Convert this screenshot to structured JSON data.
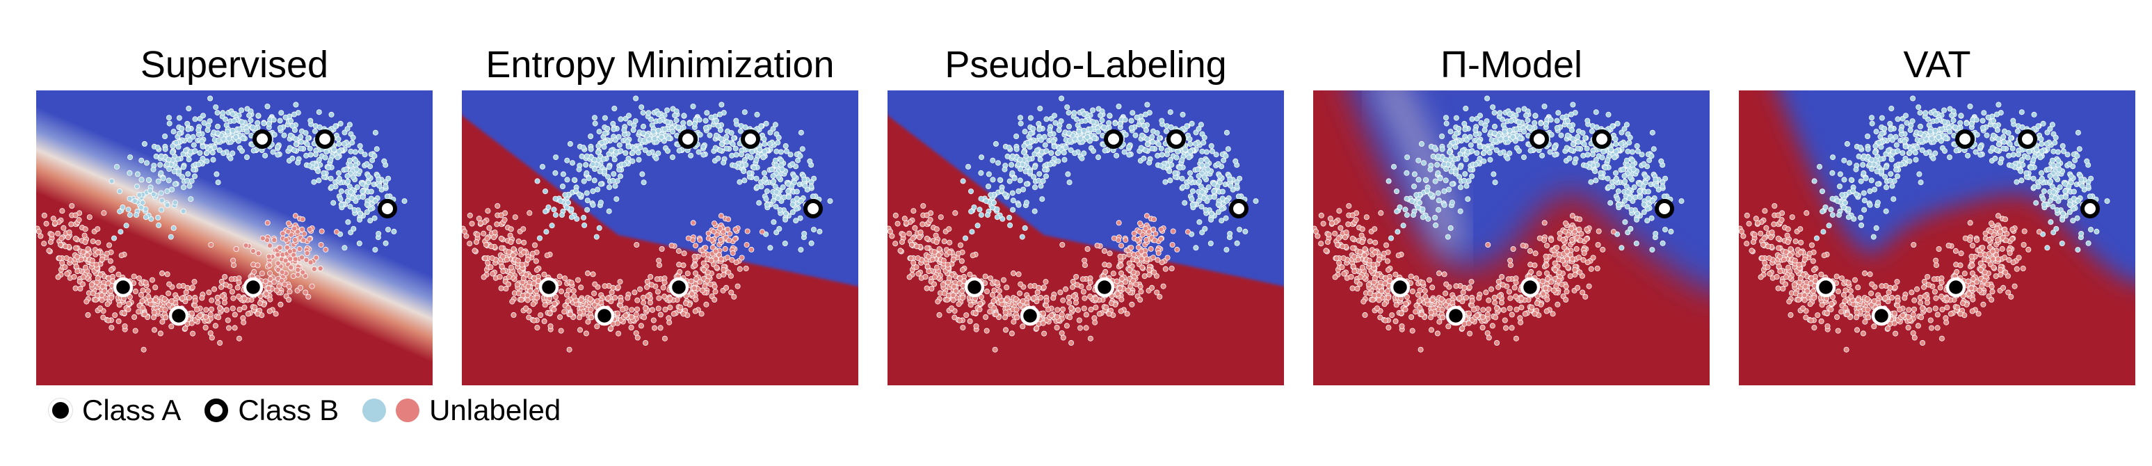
{
  "panels": [
    {
      "title": "Supervised",
      "method": "supervised"
    },
    {
      "title": "Entropy Minimization",
      "method": "entropy"
    },
    {
      "title": "Pseudo-Labeling",
      "method": "pseudo"
    },
    {
      "title": "Π-Model",
      "method": "pimodel"
    },
    {
      "title": "VAT",
      "method": "vat"
    }
  ],
  "legend": {
    "class_a": "Class A",
    "class_b": "Class B",
    "unlabeled": "Unlabeled"
  },
  "colors": {
    "region_a": "#a51d2d",
    "region_b": "#3b4cc0",
    "unlabeled_a": "#e48a86",
    "unlabeled_b": "#a9d2e3"
  }
}
